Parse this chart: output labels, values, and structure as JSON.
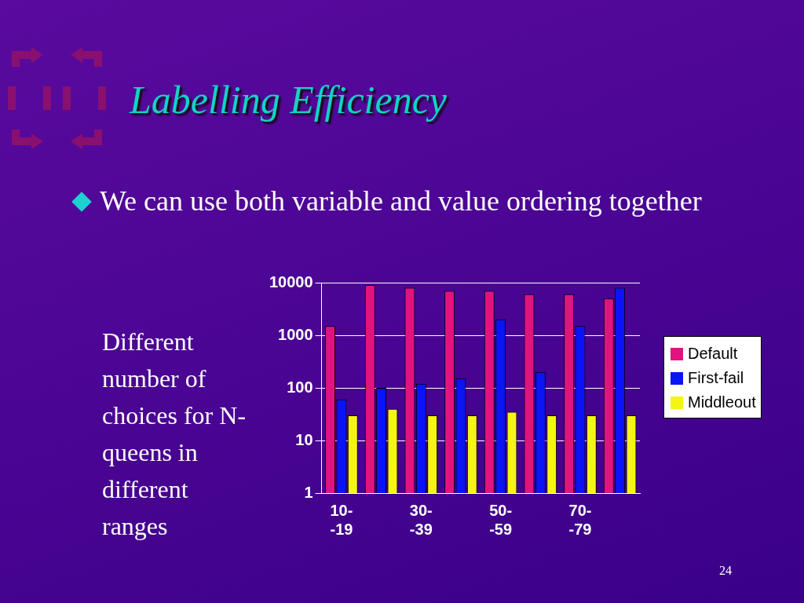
{
  "chart_data": {
    "type": "bar",
    "title": "Labelling Efficiency",
    "subtitle": "We can use both variable and value ordering together",
    "annotations": [
      "Different number of choices for N-queens in different ranges",
      "24"
    ],
    "categories": [
      "10-\n-19",
      null,
      "30-\n-39",
      null,
      "50-\n-59",
      null,
      "70-\n-79",
      null
    ],
    "series": [
      {
        "name": "Default",
        "color": "#e0147f",
        "values": [
          1500,
          9000,
          8000,
          7000,
          7000,
          6000,
          6000,
          5000
        ]
      },
      {
        "name": "First-fail",
        "color": "#0a14f5",
        "values": [
          60,
          100,
          120,
          150,
          2000,
          200,
          1500,
          8000
        ]
      },
      {
        "name": "Middleout",
        "color": "#f5f514",
        "values": [
          30,
          40,
          30,
          30,
          35,
          30,
          30,
          30
        ]
      }
    ],
    "log": "y",
    "ylim": [
      1,
      10000
    ],
    "yticks": [
      1,
      10,
      100,
      1000,
      10000
    ],
    "grid": "y",
    "legend": "right"
  }
}
